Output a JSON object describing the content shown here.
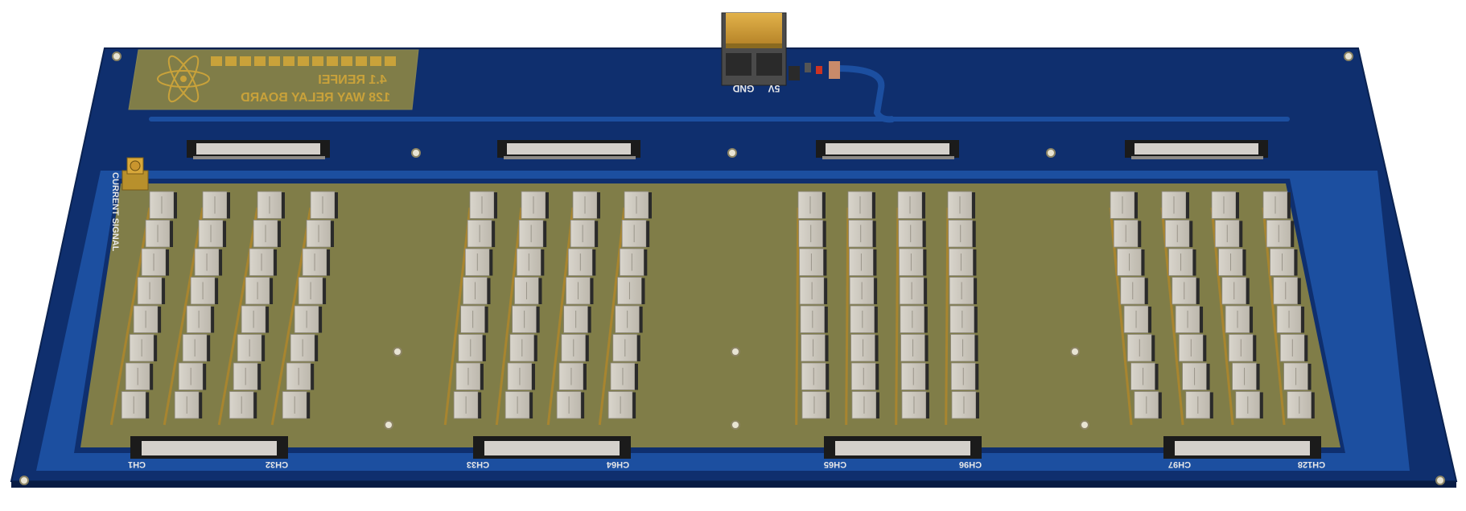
{
  "board": {
    "logo_line1": "",
    "logo_line2": "4.1 RENFEI",
    "logo_line3": "128 WAY RELAY BOARD",
    "current_signal_label": "CURRENT SIGNAL",
    "power_label_5v": "5V",
    "power_label_gnd": "GND"
  },
  "channel_labels": [
    {
      "start": "CH1",
      "end": "CH32"
    },
    {
      "start": "CH33",
      "end": "CH64"
    },
    {
      "start": "CH65",
      "end": "CH96"
    },
    {
      "start": "CH97",
      "end": "CH128"
    }
  ],
  "relay_groups": 4,
  "relay_columns_per_group": 4,
  "relays_per_column": 8,
  "colors": {
    "pcb_blue": "#0f2f6e",
    "pcb_blue_light": "#1c4fa0",
    "copper_pour": "#807d48",
    "silkscreen_gold": "#c9a23a",
    "relay_body": "#cfcac0",
    "connector_black": "#1b1b1b"
  }
}
